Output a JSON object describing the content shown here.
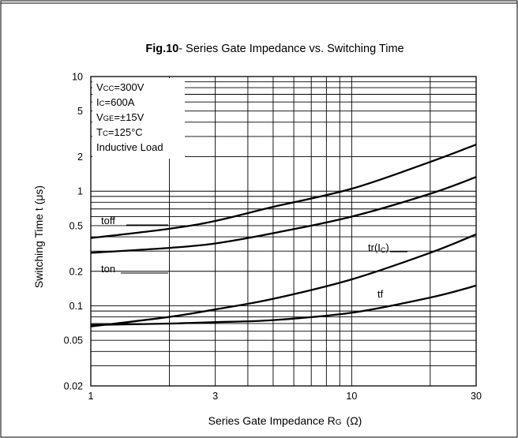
{
  "chart_data": {
    "type": "line",
    "title_bold": "Fig.10",
    "title_rest": "- Series Gate Impedance vs. Switching Time",
    "xlabel": "Series Gate Impedance R",
    "xlabel_sub": "G",
    "xlabel_unit": "(Ω)",
    "ylabel": "Switching Time t  (μs)",
    "x_scale": "log",
    "y_scale": "log",
    "xlim": [
      1,
      30
    ],
    "ylim": [
      0.02,
      10
    ],
    "x_ticks": [
      {
        "value": 1,
        "label": "1"
      },
      {
        "value": 3,
        "label": "3"
      },
      {
        "value": 10,
        "label": "10"
      },
      {
        "value": 30,
        "label": "30"
      }
    ],
    "y_ticks": [
      {
        "value": 10,
        "label": "10"
      },
      {
        "value": 5,
        "label": "5"
      },
      {
        "value": 2,
        "label": "2"
      },
      {
        "value": 1,
        "label": "1"
      },
      {
        "value": 0.5,
        "label": "0.5"
      },
      {
        "value": 0.2,
        "label": "0.2"
      },
      {
        "value": 0.1,
        "label": "0.1"
      },
      {
        "value": 0.05,
        "label": "0.05"
      },
      {
        "value": 0.02,
        "label": "0.02"
      }
    ],
    "grid": true,
    "conditions": [
      {
        "main": "V",
        "sub": "CC",
        "rest": "=300V"
      },
      {
        "main": "I",
        "sub": "C",
        "rest": "=600A"
      },
      {
        "main": "V",
        "sub": "GE",
        "rest": "=±15V"
      },
      {
        "main": "T",
        "sub": "C",
        "rest": "=125°C"
      },
      {
        "main": "Inductive Load",
        "sub": "",
        "rest": ""
      }
    ],
    "series": [
      {
        "name": "toff",
        "name_main": "toff",
        "name_sub": "",
        "x": [
          1,
          2,
          3,
          5,
          10,
          20,
          30
        ],
        "y": [
          0.39,
          0.47,
          0.55,
          0.73,
          1.05,
          1.8,
          2.55
        ]
      },
      {
        "name": "ton",
        "name_main": "ton",
        "name_sub": "",
        "x": [
          1,
          2,
          3,
          5,
          10,
          20,
          30
        ],
        "y": [
          0.29,
          0.32,
          0.35,
          0.43,
          0.6,
          0.95,
          1.33
        ]
      },
      {
        "name": "tr(IC)",
        "name_main": "tr(I",
        "name_sub": "C",
        "name_end": ")",
        "x": [
          1,
          2,
          3,
          5,
          10,
          20,
          30
        ],
        "y": [
          0.066,
          0.08,
          0.093,
          0.115,
          0.17,
          0.29,
          0.42
        ]
      },
      {
        "name": "tf",
        "name_main": "tf",
        "name_sub": "",
        "x": [
          1,
          2,
          3,
          5,
          10,
          20,
          30
        ],
        "y": [
          0.068,
          0.07,
          0.072,
          0.075,
          0.087,
          0.118,
          0.15
        ]
      }
    ]
  }
}
